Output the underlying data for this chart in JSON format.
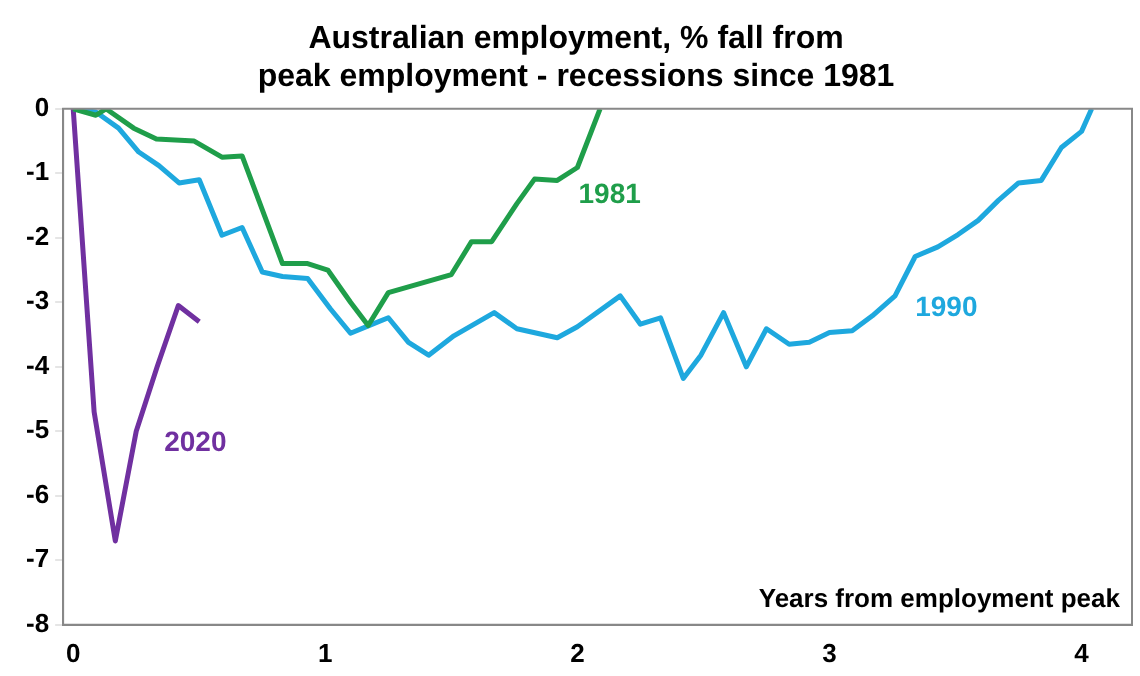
{
  "chart_data": {
    "type": "line",
    "title": "Australian employment, % fall from peak employment - recessions since 1981",
    "xlabel": "Years from employment peak",
    "xlim": [
      -0.04,
      4.2
    ],
    "xticks": [
      0,
      1,
      2,
      3,
      4
    ],
    "ylim": [
      -8,
      0
    ],
    "yticks": [
      -8,
      -7,
      -6,
      -5,
      -4,
      -3,
      -2,
      -1,
      0
    ],
    "grid": false,
    "legend": false,
    "marker": "none",
    "line_style": "solid",
    "series": [
      {
        "name": "1981",
        "color": "#1f9e4a",
        "x": [
          0,
          0.09,
          0.13,
          0.24,
          0.33,
          0.48,
          0.59,
          0.67,
          0.83,
          0.93,
          1.01,
          1.1,
          1.17,
          1.25,
          1.5,
          1.58,
          1.66,
          1.76,
          1.83,
          1.92,
          2.0,
          2.09
        ],
        "values": [
          0,
          -0.1,
          0,
          -0.3,
          -0.47,
          -0.5,
          -0.75,
          -0.73,
          -2.4,
          -2.4,
          -2.5,
          -3.0,
          -3.36,
          -2.85,
          -2.57,
          -2.06,
          -2.06,
          -1.47,
          -1.09,
          -1.11,
          -0.91,
          0
        ]
      },
      {
        "name": "1990",
        "color": "#1ea8de",
        "x": [
          0,
          0.09,
          0.18,
          0.26,
          0.34,
          0.42,
          0.5,
          0.59,
          0.67,
          0.75,
          0.83,
          0.93,
          1.02,
          1.1,
          1.18,
          1.25,
          1.33,
          1.41,
          1.51,
          1.67,
          1.76,
          1.92,
          2.0,
          2.17,
          2.25,
          2.33,
          2.42,
          2.49,
          2.58,
          2.67,
          2.75,
          2.84,
          2.92,
          3.0,
          3.09,
          3.17,
          3.26,
          3.34,
          3.43,
          3.51,
          3.59,
          3.67,
          3.75,
          3.84,
          3.92,
          4.0,
          4.04
        ],
        "values": [
          0,
          -0.05,
          -0.3,
          -0.67,
          -0.88,
          -1.15,
          -1.1,
          -1.96,
          -1.84,
          -2.53,
          -2.6,
          -2.63,
          -3.1,
          -3.48,
          -3.35,
          -3.24,
          -3.62,
          -3.82,
          -3.52,
          -3.16,
          -3.41,
          -3.55,
          -3.38,
          -2.9,
          -3.34,
          -3.24,
          -4.18,
          -3.82,
          -3.16,
          -4.0,
          -3.41,
          -3.65,
          -3.62,
          -3.47,
          -3.44,
          -3.21,
          -2.9,
          -2.29,
          -2.14,
          -1.95,
          -1.73,
          -1.42,
          -1.15,
          -1.11,
          -0.6,
          -0.35,
          0
        ]
      },
      {
        "name": "2020",
        "color": "#7030a0",
        "x": [
          0,
          0.083,
          0.167,
          0.25,
          0.333,
          0.417,
          0.5
        ],
        "values": [
          0,
          -4.7,
          -6.7,
          -5.0,
          -4.0,
          -3.05,
          -3.3
        ]
      }
    ]
  }
}
